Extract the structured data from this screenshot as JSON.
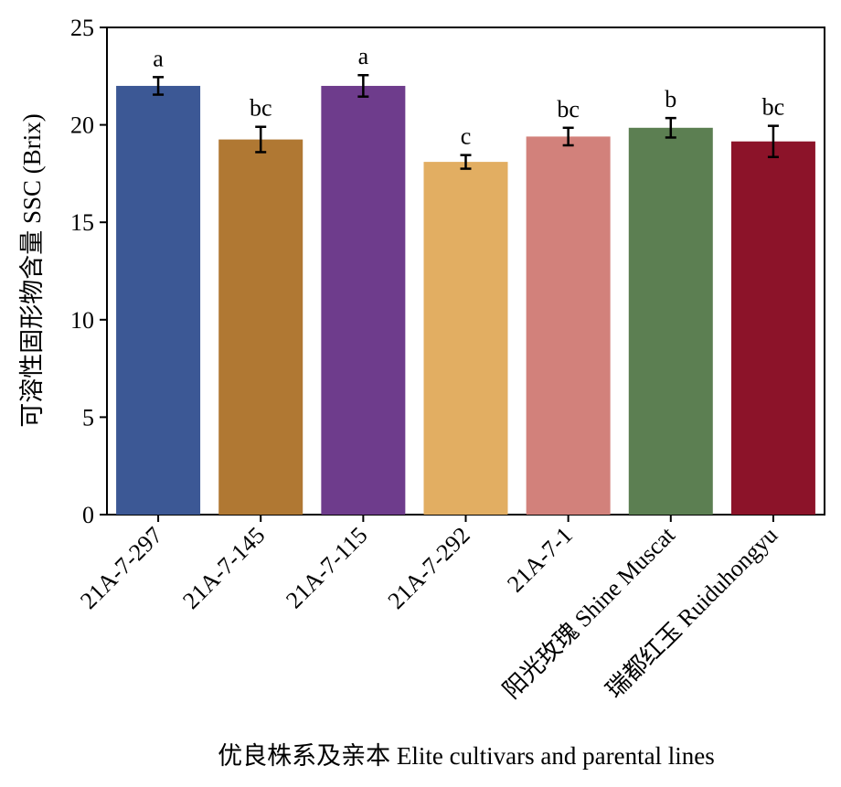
{
  "chart_data": {
    "type": "bar",
    "title": "",
    "xlabel": "优良株系及亲本 Elite cultivars and parental lines",
    "ylabel": "可溶性固形物含量 SSC (Brix)",
    "ylim": [
      0,
      25
    ],
    "yticks": [
      "0",
      "5",
      "10",
      "15",
      "20",
      "25"
    ],
    "ytick_values": [
      0,
      5,
      10,
      15,
      20,
      25
    ],
    "categories": [
      "21A-7-297",
      "21A-7-145",
      "21A-7-115",
      "21A-7-292",
      "21A-7-1",
      "阳光玫瑰 Shine Muscat",
      "瑞都红玉 Ruiduhongyu"
    ],
    "values": [
      22.0,
      19.25,
      22.0,
      18.1,
      19.4,
      19.85,
      19.15
    ],
    "errors": [
      0.45,
      0.65,
      0.55,
      0.35,
      0.45,
      0.5,
      0.8
    ],
    "significance": [
      "a",
      "bc",
      "a",
      "c",
      "bc",
      "b",
      "bc"
    ],
    "colors": [
      "#3c5895",
      "#b07833",
      "#6e3c8c",
      "#e2ae62",
      "#d2817b",
      "#5c7f52",
      "#8c1329"
    ],
    "grid": false,
    "legend": "none"
  }
}
